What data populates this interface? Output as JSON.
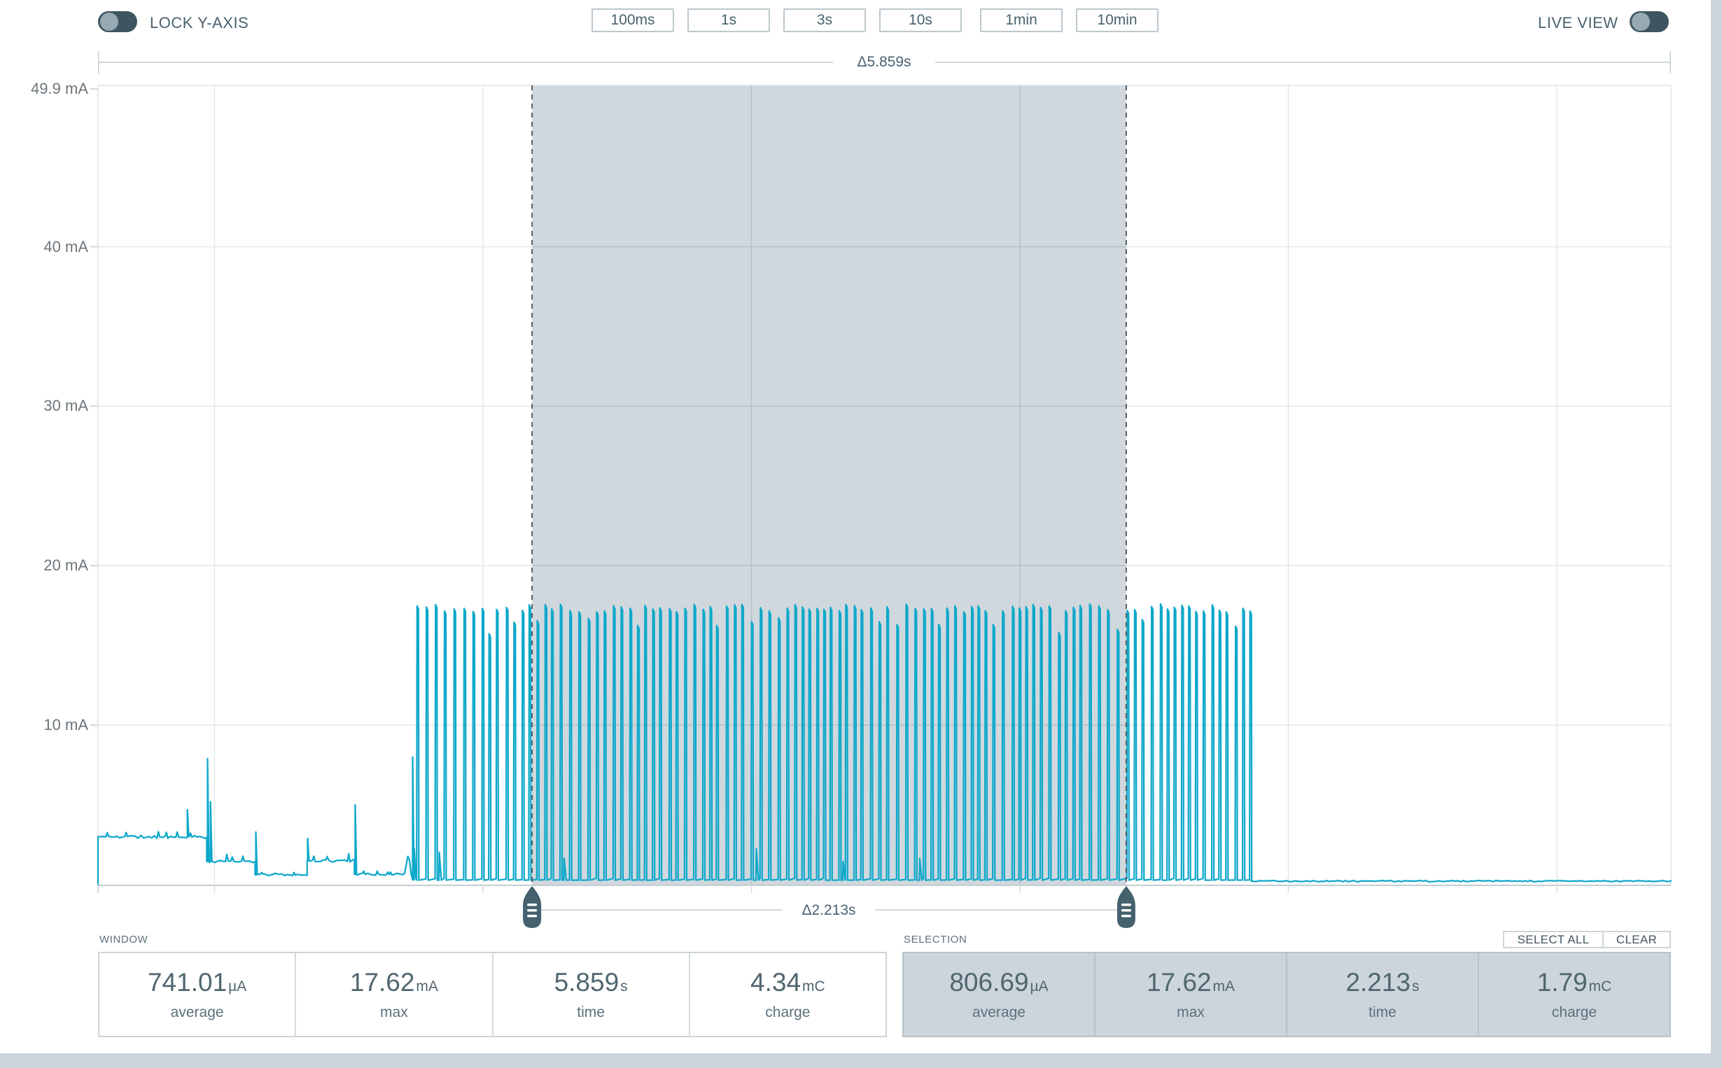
{
  "toolbar": {
    "lock_y_axis_label": "LOCK Y-AXIS",
    "live_view_label": "LIVE VIEW",
    "zoom_buttons": [
      {
        "label": "100ms"
      },
      {
        "label": "1s"
      },
      {
        "label": "3s"
      },
      {
        "label": "10s"
      },
      {
        "label": "1min"
      },
      {
        "label": "10min"
      }
    ]
  },
  "stats": {
    "window": {
      "title": "WINDOW",
      "cells": [
        {
          "value": "741.01",
          "unit": "µA",
          "label": "average"
        },
        {
          "value": "17.62",
          "unit": "mA",
          "label": "max"
        },
        {
          "value": "5.859",
          "unit": "s",
          "label": "time"
        },
        {
          "value": "4.34",
          "unit": "mC",
          "label": "charge"
        }
      ]
    },
    "selection": {
      "title": "SELECTION",
      "select_all_label": "SELECT ALL",
      "clear_label": "CLEAR",
      "cells": [
        {
          "value": "806.69",
          "unit": "µA",
          "label": "average"
        },
        {
          "value": "17.62",
          "unit": "mA",
          "label": "max"
        },
        {
          "value": "2.213",
          "unit": "s",
          "label": "time"
        },
        {
          "value": "1.79",
          "unit": "mC",
          "label": "charge"
        }
      ]
    }
  },
  "colors": {
    "trace": "#0ea8ca",
    "slate": "#44616d",
    "selection_fill": "#d0d8de",
    "grid_light": "#e4e7e9",
    "grid_dark": "#b4bec5",
    "axis_line": "#c6cdd1",
    "bracket_line": "#c3ccd2",
    "dashed_border": "#535e66"
  },
  "chart_data": {
    "type": "line",
    "title": "Current vs time (power profiler trace)",
    "y_unit": "mA",
    "y_max_mA": 50.1,
    "y_ticks": [
      {
        "label": "49.9 mA",
        "mA": 49.9
      },
      {
        "label": "40 mA",
        "mA": 40
      },
      {
        "label": "30 mA",
        "mA": 30
      },
      {
        "label": "20 mA",
        "mA": 20
      },
      {
        "label": "10 mA",
        "mA": 10
      }
    ],
    "window_seconds": 5.859,
    "window_delta_label": "Δ5.859s",
    "selection": {
      "start_s": 1.617,
      "end_s": 3.83,
      "delta_label": "Δ2.213s"
    },
    "x_gridline_first_s": 0.434,
    "x_gridline_step_s": 1.0,
    "legend": "none",
    "grid": "on",
    "waveform_segments": [
      {
        "type": "flat",
        "t0": 0.0,
        "t1": 0.405,
        "level": 3.0,
        "noise": 0.1,
        "ticks": 0.25,
        "spikes": [
          {
            "t": 0.333,
            "peak": 4.7
          }
        ]
      },
      {
        "type": "flat",
        "t0": 0.405,
        "t1": 0.585,
        "level": 1.45,
        "noise": 0.08,
        "ticks": 0.4,
        "spikes": [
          {
            "t": 0.408,
            "peak": 7.9
          },
          {
            "t": 0.419,
            "peak": 5.2
          }
        ]
      },
      {
        "type": "flat",
        "t0": 0.585,
        "t1": 0.779,
        "level": 0.62,
        "noise": 0.06,
        "ticks": 0.15,
        "spikes": [
          {
            "t": 0.588,
            "peak": 3.3
          }
        ]
      },
      {
        "type": "flat",
        "t0": 0.779,
        "t1": 0.955,
        "level": 1.5,
        "noise": 0.08,
        "ticks": 0.4,
        "spikes": [
          {
            "t": 0.781,
            "peak": 2.9
          }
        ]
      },
      {
        "type": "flat",
        "t0": 0.955,
        "t1": 1.142,
        "level": 0.65,
        "noise": 0.06,
        "ticks": 0.15,
        "spikes": [
          {
            "t": 0.958,
            "peak": 5.0
          }
        ]
      },
      {
        "type": "noise",
        "t0": 1.142,
        "t1": 1.187,
        "min": 0.3,
        "max": 3.4,
        "spikes": [
          {
            "t": 1.172,
            "peak": 8.0
          }
        ]
      },
      {
        "type": "burst",
        "t0": 1.187,
        "t1": 4.296,
        "period_ms": 30,
        "peak": 17.35,
        "peak_jitter": 0.25,
        "low": 0.28
      },
      {
        "type": "flat",
        "t0": 4.296,
        "t1": 5.859,
        "level": 0.22,
        "noise": 0.04,
        "ticks": 0,
        "spikes": []
      }
    ]
  }
}
